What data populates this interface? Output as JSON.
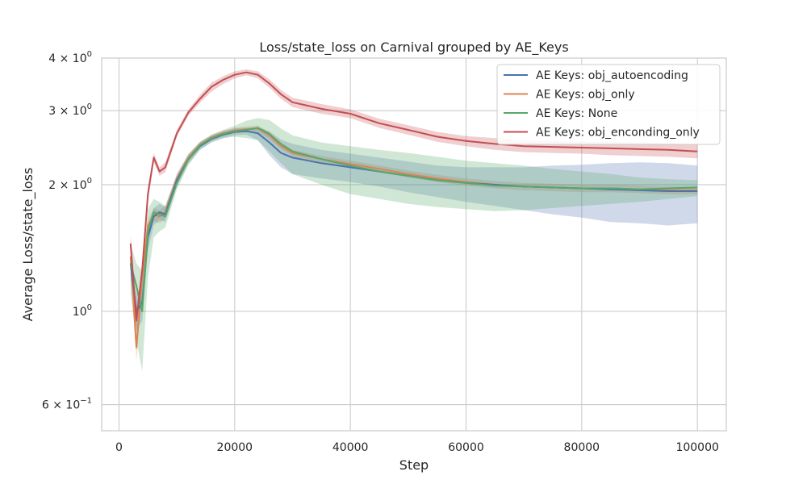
{
  "chart_data": {
    "type": "line",
    "title": "Loss/state_loss on Carnival grouped by AE_Keys",
    "xlabel": "Step",
    "ylabel": "Average Loss/state_loss",
    "yscale": "log",
    "xlim": [
      -3000,
      105000
    ],
    "ylim": [
      0.52,
      4.0
    ],
    "grid": true,
    "legend_position": "top-right",
    "x_ticks": [
      {
        "value": 0,
        "label": "0"
      },
      {
        "value": 20000,
        "label": "20000"
      },
      {
        "value": 40000,
        "label": "40000"
      },
      {
        "value": 60000,
        "label": "60000"
      },
      {
        "value": 80000,
        "label": "80000"
      },
      {
        "value": 100000,
        "label": "100000"
      }
    ],
    "y_ticks": [
      {
        "value": 4,
        "base": "4 × 10",
        "exp": "0"
      },
      {
        "value": 3,
        "base": "3 × 10",
        "exp": "0"
      },
      {
        "value": 2,
        "base": "2 × 10",
        "exp": "0"
      },
      {
        "value": 1,
        "base": "10",
        "exp": "0"
      },
      {
        "value": 0.6,
        "base": "6 × 10",
        "exp": "−1"
      }
    ],
    "x": [
      2000,
      3000,
      4000,
      5000,
      6000,
      7000,
      8000,
      10000,
      12000,
      14000,
      16000,
      18000,
      20000,
      22000,
      24000,
      26000,
      28000,
      30000,
      35000,
      40000,
      45000,
      50000,
      55000,
      60000,
      65000,
      70000,
      75000,
      80000,
      85000,
      90000,
      95000,
      100000
    ],
    "series": [
      {
        "name": "AE Keys: obj_autoencoding",
        "color": "#4c72b0",
        "values": [
          1.3,
          1.0,
          1.05,
          1.5,
          1.68,
          1.72,
          1.7,
          2.05,
          2.3,
          2.47,
          2.57,
          2.63,
          2.67,
          2.68,
          2.65,
          2.52,
          2.38,
          2.32,
          2.25,
          2.2,
          2.15,
          2.1,
          2.05,
          2.02,
          2.0,
          1.98,
          1.97,
          1.96,
          1.95,
          1.94,
          1.93,
          1.93
        ],
        "lower": [
          1.2,
          0.9,
          0.95,
          1.4,
          1.6,
          1.65,
          1.63,
          1.98,
          2.24,
          2.42,
          2.52,
          2.58,
          2.62,
          2.63,
          2.55,
          2.35,
          2.2,
          2.12,
          2.07,
          2.03,
          1.98,
          1.92,
          1.87,
          1.82,
          1.78,
          1.74,
          1.7,
          1.67,
          1.63,
          1.62,
          1.6,
          1.62
        ],
        "upper": [
          1.4,
          1.1,
          1.15,
          1.6,
          1.76,
          1.8,
          1.77,
          2.12,
          2.36,
          2.52,
          2.62,
          2.68,
          2.72,
          2.73,
          2.74,
          2.68,
          2.56,
          2.5,
          2.42,
          2.37,
          2.32,
          2.27,
          2.22,
          2.2,
          2.2,
          2.2,
          2.22,
          2.23,
          2.25,
          2.26,
          2.25,
          2.22
        ]
      },
      {
        "name": "AE Keys: obj_only",
        "color": "#dd8452",
        "values": [
          1.35,
          0.82,
          1.2,
          1.6,
          1.7,
          1.68,
          1.72,
          2.07,
          2.32,
          2.49,
          2.59,
          2.65,
          2.69,
          2.71,
          2.72,
          2.62,
          2.47,
          2.38,
          2.3,
          2.24,
          2.18,
          2.12,
          2.07,
          2.03,
          2.0,
          1.98,
          1.97,
          1.96,
          1.96,
          1.95,
          1.94,
          1.94
        ],
        "lower": [
          1.3,
          0.76,
          1.12,
          1.54,
          1.64,
          1.62,
          1.66,
          2.02,
          2.27,
          2.45,
          2.55,
          2.61,
          2.65,
          2.67,
          2.67,
          2.57,
          2.43,
          2.34,
          2.26,
          2.2,
          2.14,
          2.08,
          2.03,
          1.99,
          1.96,
          1.94,
          1.93,
          1.92,
          1.92,
          1.91,
          1.9,
          1.9
        ],
        "upper": [
          1.4,
          0.88,
          1.28,
          1.66,
          1.76,
          1.74,
          1.78,
          2.12,
          2.37,
          2.53,
          2.63,
          2.69,
          2.73,
          2.75,
          2.77,
          2.67,
          2.51,
          2.42,
          2.34,
          2.28,
          2.22,
          2.16,
          2.11,
          2.07,
          2.04,
          2.02,
          2.01,
          2.0,
          2.0,
          1.99,
          1.98,
          1.98
        ]
      },
      {
        "name": "AE Keys: None",
        "color": "#55a868",
        "values": [
          1.3,
          1.15,
          1.0,
          1.55,
          1.72,
          1.7,
          1.68,
          2.02,
          2.3,
          2.48,
          2.58,
          2.64,
          2.68,
          2.7,
          2.73,
          2.64,
          2.5,
          2.4,
          2.3,
          2.22,
          2.15,
          2.1,
          2.05,
          2.02,
          1.99,
          1.98,
          1.97,
          1.96,
          1.96,
          1.95,
          1.96,
          1.97
        ],
        "lower": [
          1.1,
          0.85,
          0.72,
          1.2,
          1.5,
          1.55,
          1.58,
          1.95,
          2.23,
          2.42,
          2.53,
          2.58,
          2.6,
          2.58,
          2.55,
          2.4,
          2.25,
          2.12,
          2.0,
          1.9,
          1.85,
          1.8,
          1.77,
          1.75,
          1.73,
          1.74,
          1.76,
          1.78,
          1.8,
          1.82,
          1.85,
          1.88
        ],
        "upper": [
          1.45,
          1.3,
          1.25,
          1.75,
          1.85,
          1.82,
          1.78,
          2.1,
          2.36,
          2.53,
          2.63,
          2.7,
          2.76,
          2.84,
          2.88,
          2.85,
          2.72,
          2.62,
          2.52,
          2.47,
          2.42,
          2.38,
          2.33,
          2.28,
          2.25,
          2.22,
          2.18,
          2.15,
          2.12,
          2.08,
          2.06,
          2.05
        ]
      },
      {
        "name": "AE Keys: obj_enconding_only",
        "color": "#c44e52",
        "values": [
          1.45,
          0.95,
          1.25,
          1.9,
          2.32,
          2.15,
          2.2,
          2.65,
          2.97,
          3.2,
          3.42,
          3.55,
          3.65,
          3.7,
          3.65,
          3.48,
          3.28,
          3.14,
          3.03,
          2.95,
          2.8,
          2.7,
          2.6,
          2.54,
          2.5,
          2.47,
          2.46,
          2.45,
          2.44,
          2.43,
          2.42,
          2.4
        ],
        "lower": [
          1.38,
          0.9,
          1.18,
          1.82,
          2.26,
          2.1,
          2.14,
          2.6,
          2.92,
          3.13,
          3.33,
          3.47,
          3.58,
          3.64,
          3.58,
          3.4,
          3.2,
          3.06,
          2.95,
          2.88,
          2.73,
          2.63,
          2.53,
          2.47,
          2.42,
          2.39,
          2.38,
          2.37,
          2.35,
          2.34,
          2.33,
          2.31
        ],
        "upper": [
          1.52,
          1.0,
          1.32,
          1.98,
          2.38,
          2.2,
          2.26,
          2.7,
          3.02,
          3.27,
          3.5,
          3.62,
          3.72,
          3.76,
          3.72,
          3.56,
          3.36,
          3.22,
          3.11,
          3.02,
          2.87,
          2.77,
          2.67,
          2.61,
          2.58,
          2.55,
          2.54,
          2.53,
          2.53,
          2.52,
          2.51,
          2.49
        ]
      }
    ]
  }
}
